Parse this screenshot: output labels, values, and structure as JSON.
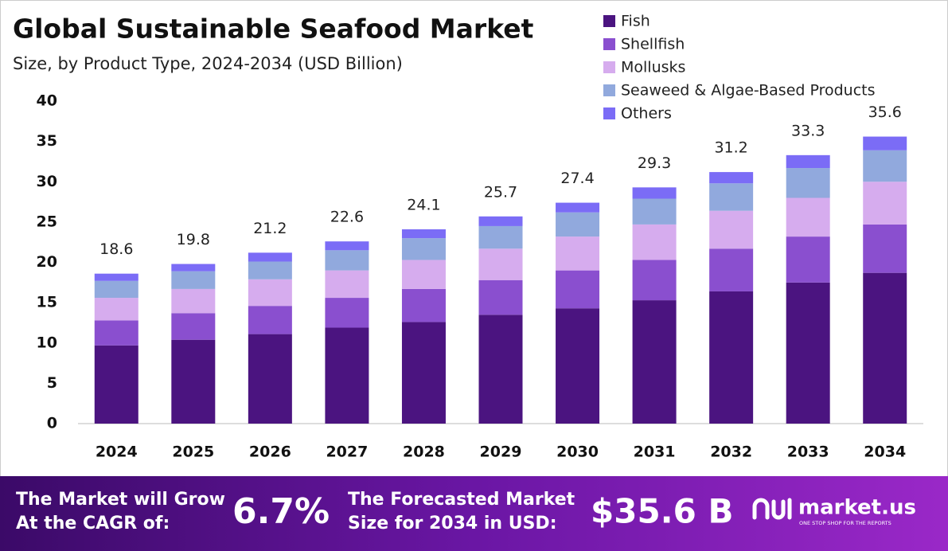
{
  "chart_data": {
    "type": "stacked_bar",
    "title": "Global Sustainable Seafood Market",
    "subtitle": "Size, by Product Type, 2024-2034 (USD Billion)",
    "categories": [
      "2024",
      "2025",
      "2026",
      "2027",
      "2028",
      "2029",
      "2030",
      "2031",
      "2032",
      "2033",
      "2034"
    ],
    "series": [
      {
        "name": "Fish",
        "color": "#4b1480",
        "values": [
          9.7,
          10.4,
          11.1,
          11.9,
          12.6,
          13.5,
          14.3,
          15.3,
          16.4,
          17.5,
          18.7
        ]
      },
      {
        "name": "Shellfish",
        "color": "#8a4fcf",
        "values": [
          3.1,
          3.3,
          3.5,
          3.7,
          4.1,
          4.3,
          4.7,
          5.0,
          5.3,
          5.7,
          6.0
        ]
      },
      {
        "name": "Mollusks",
        "color": "#d6acee",
        "values": [
          2.8,
          3.0,
          3.3,
          3.4,
          3.6,
          3.9,
          4.2,
          4.4,
          4.7,
          4.8,
          5.3
        ]
      },
      {
        "name": "Seaweed & Algae-Based Products",
        "color": "#91a9dd",
        "values": [
          2.1,
          2.2,
          2.2,
          2.5,
          2.7,
          2.8,
          3.0,
          3.2,
          3.4,
          3.7,
          3.9
        ]
      },
      {
        "name": "Others",
        "color": "#7b6cf6",
        "values": [
          0.9,
          0.9,
          1.1,
          1.1,
          1.1,
          1.2,
          1.2,
          1.4,
          1.4,
          1.6,
          1.7
        ]
      }
    ],
    "totals": [
      18.6,
      19.8,
      21.2,
      22.6,
      24.1,
      25.7,
      27.4,
      29.3,
      31.2,
      33.3,
      35.6
    ],
    "ylim": [
      0,
      40
    ],
    "yticks": [
      0,
      5,
      10,
      15,
      20,
      25,
      30,
      35,
      40
    ],
    "grid": false,
    "legend": "top-right"
  },
  "footer": {
    "cagr_line1": "The Market will Grow",
    "cagr_line2": "At the CAGR of:",
    "cagr_value": "6.7%",
    "forecast_line1": "The Forecasted Market",
    "forecast_line2": "Size for 2034 in USD:",
    "forecast_value": "$35.6 B",
    "brand": "market.us",
    "tagline": "ONE STOP SHOP FOR THE REPORTS"
  }
}
